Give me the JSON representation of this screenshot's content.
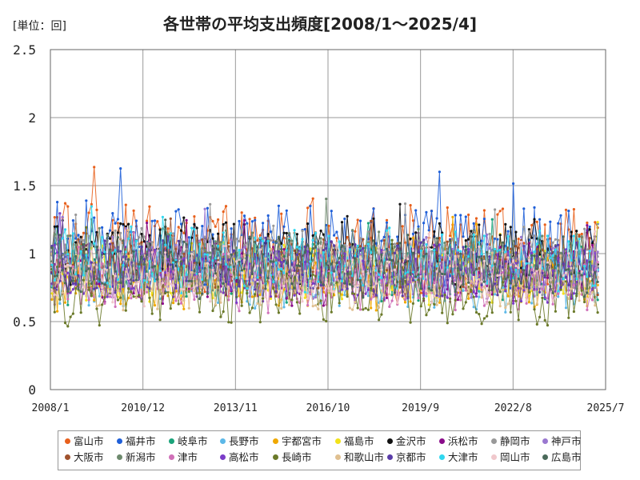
{
  "chart_data": {
    "type": "line",
    "unit": "[単位：回]",
    "title": "各世帯の平均支出頻度[2008/1～2025/4]",
    "xlim": [
      "2008/1",
      "2025/7"
    ],
    "x_ticks": [
      "2008/1",
      "2010/12",
      "2013/11",
      "2016/10",
      "2019/9",
      "2022/8",
      "2025/7"
    ],
    "ylim": [
      0,
      2.5
    ],
    "y_ticks": [
      0,
      0.5,
      1,
      1.5,
      2,
      2.5
    ],
    "y_tick_labels": [
      "0",
      "0.5",
      "1",
      "1.5",
      "2",
      "2.5"
    ],
    "grid": true,
    "legend_position": "bottom",
    "series": [
      {
        "name": "富山市",
        "color": "#e8601c",
        "base": 1.05,
        "spread": 0.3,
        "seed": 11
      },
      {
        "name": "福井市",
        "color": "#1f5fd8",
        "base": 1.05,
        "spread": 0.28,
        "seed": 23
      },
      {
        "name": "岐阜市",
        "color": "#1aa37a",
        "base": 0.85,
        "spread": 0.18,
        "seed": 37
      },
      {
        "name": "長野市",
        "color": "#5cb8e8",
        "base": 0.8,
        "spread": 0.18,
        "seed": 41
      },
      {
        "name": "宇都宮市",
        "color": "#f0a800",
        "base": 0.8,
        "spread": 0.18,
        "seed": 53
      },
      {
        "name": "福島市",
        "color": "#f2e21a",
        "base": 0.85,
        "spread": 0.18,
        "seed": 67
      },
      {
        "name": "金沢市",
        "color": "#111111",
        "base": 1.0,
        "spread": 0.22,
        "seed": 71
      },
      {
        "name": "浜松市",
        "color": "#8a0c8a",
        "base": 0.85,
        "spread": 0.18,
        "seed": 83
      },
      {
        "name": "静岡市",
        "color": "#999999",
        "base": 0.95,
        "spread": 0.2,
        "seed": 97
      },
      {
        "name": "神戸市",
        "color": "#9a78d0",
        "base": 0.9,
        "spread": 0.18,
        "seed": 101
      },
      {
        "name": "大阪市",
        "color": "#a0522d",
        "base": 0.9,
        "spread": 0.18,
        "seed": 113
      },
      {
        "name": "新潟市",
        "color": "#6e8a6e",
        "base": 0.95,
        "spread": 0.2,
        "seed": 127
      },
      {
        "name": "津市",
        "color": "#d070b8",
        "base": 0.8,
        "spread": 0.18,
        "seed": 131
      },
      {
        "name": "高松市",
        "color": "#7a3cc8",
        "base": 0.85,
        "spread": 0.18,
        "seed": 149
      },
      {
        "name": "長崎市",
        "color": "#6b7a2a",
        "base": 0.7,
        "spread": 0.2,
        "seed": 157
      },
      {
        "name": "和歌山市",
        "color": "#e0c090",
        "base": 0.8,
        "spread": 0.18,
        "seed": 163
      },
      {
        "name": "京都市",
        "color": "#5a3ca8",
        "base": 0.9,
        "spread": 0.18,
        "seed": 173
      },
      {
        "name": "大津市",
        "color": "#30d8f0",
        "base": 0.95,
        "spread": 0.2,
        "seed": 181
      },
      {
        "name": "岡山市",
        "color": "#f0c8cc",
        "base": 0.85,
        "spread": 0.18,
        "seed": 191
      },
      {
        "name": "広島市",
        "color": "#4a6a5a",
        "base": 0.9,
        "spread": 0.18,
        "seed": 199
      }
    ]
  }
}
